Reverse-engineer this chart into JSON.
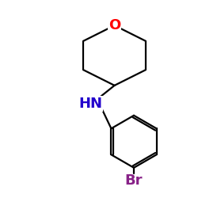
{
  "background_color": "#ffffff",
  "O_label": {
    "text": "O",
    "color": "#ff0000",
    "fontsize": 13
  },
  "HN_label": {
    "text": "HN",
    "color": "#2200cc",
    "fontsize": 13
  },
  "Br_label": {
    "text": "Br",
    "color": "#882288",
    "fontsize": 13
  },
  "lw": 1.6
}
